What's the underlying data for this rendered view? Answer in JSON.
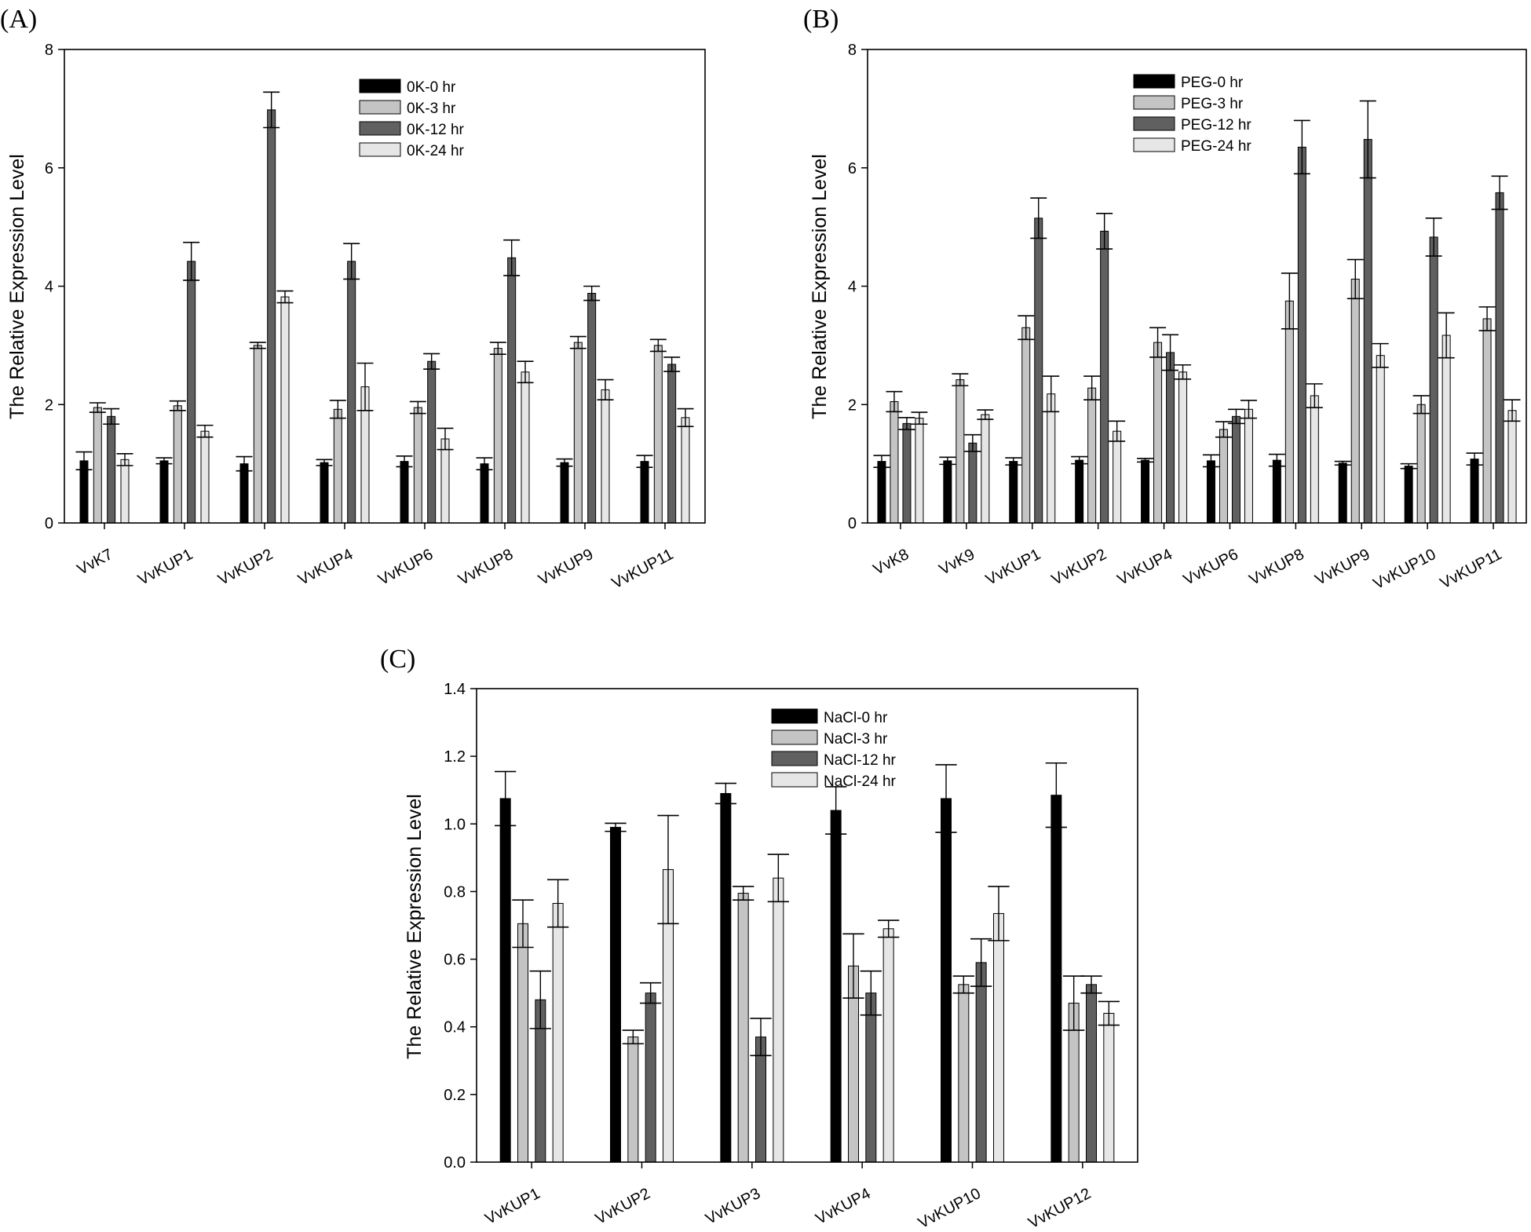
{
  "chart_data": [
    {
      "type": "bar",
      "panel_label": "(A)",
      "title": "",
      "xlabel": "",
      "ylabel": "The Relative Expression Level",
      "ylim": [
        0,
        8
      ],
      "yticks": [
        "0",
        "2",
        "4",
        "6",
        "8"
      ],
      "legend_position": "top-center",
      "categories": [
        "VvK7",
        "VvKUP1",
        "VvKUP2",
        "VvKUP4",
        "VvKUP6",
        "VvKUP8",
        "VvKUP9",
        "VvKUP11"
      ],
      "series": [
        {
          "name": "0K-0 hr",
          "color": "#000000",
          "values": [
            1.05,
            1.05,
            1.0,
            1.02,
            1.04,
            1.0,
            1.02,
            1.04
          ],
          "errors": [
            0.15,
            0.05,
            0.12,
            0.05,
            0.09,
            0.1,
            0.06,
            0.1
          ]
        },
        {
          "name": "0K-3 hr",
          "color": "#c4c4c4",
          "values": [
            1.95,
            1.98,
            3.0,
            1.92,
            1.95,
            2.95,
            3.05,
            3.0
          ],
          "errors": [
            0.08,
            0.08,
            0.05,
            0.15,
            0.1,
            0.1,
            0.1,
            0.1
          ]
        },
        {
          "name": "0K-12 hr",
          "color": "#606060",
          "values": [
            1.8,
            4.42,
            6.98,
            4.42,
            2.73,
            4.48,
            3.88,
            2.68
          ],
          "errors": [
            0.13,
            0.32,
            0.3,
            0.3,
            0.13,
            0.3,
            0.12,
            0.12
          ]
        },
        {
          "name": "0K-24 hr",
          "color": "#e6e6e6",
          "values": [
            1.07,
            1.55,
            3.82,
            2.3,
            1.42,
            2.55,
            2.25,
            1.78
          ],
          "errors": [
            0.1,
            0.1,
            0.1,
            0.4,
            0.18,
            0.18,
            0.17,
            0.15
          ]
        }
      ]
    },
    {
      "type": "bar",
      "panel_label": "(B)",
      "title": "",
      "xlabel": "",
      "ylabel": "The Relative Expression Level",
      "ylim": [
        0,
        8
      ],
      "yticks": [
        "0",
        "2",
        "4",
        "6",
        "8"
      ],
      "legend_position": "top-center",
      "categories": [
        "VvK8",
        "VvK9",
        "VvKUP1",
        "VvKUP2",
        "VvKUP4",
        "VvKUP6",
        "VvKUP8",
        "VvKUP9",
        "VvKUP10",
        "VvKUP11"
      ],
      "series": [
        {
          "name": "PEG-0 hr",
          "color": "#000000",
          "values": [
            1.04,
            1.05,
            1.04,
            1.06,
            1.06,
            1.05,
            1.06,
            1.01,
            0.96,
            1.08
          ],
          "errors": [
            0.1,
            0.06,
            0.06,
            0.06,
            0.03,
            0.1,
            0.1,
            0.03,
            0.04,
            0.1
          ]
        },
        {
          "name": "PEG-3 hr",
          "color": "#c4c4c4",
          "values": [
            2.05,
            2.42,
            3.3,
            2.28,
            3.05,
            1.58,
            3.75,
            4.12,
            2.0,
            3.45
          ],
          "errors": [
            0.17,
            0.1,
            0.2,
            0.2,
            0.25,
            0.13,
            0.47,
            0.33,
            0.15,
            0.2
          ]
        },
        {
          "name": "PEG-12 hr",
          "color": "#606060",
          "values": [
            1.68,
            1.35,
            5.15,
            4.93,
            2.88,
            1.8,
            6.35,
            6.48,
            4.83,
            5.58
          ],
          "errors": [
            0.1,
            0.14,
            0.34,
            0.3,
            0.3,
            0.12,
            0.45,
            0.65,
            0.32,
            0.28
          ]
        },
        {
          "name": "PEG-24 hr",
          "color": "#e6e6e6",
          "values": [
            1.77,
            1.83,
            2.18,
            1.55,
            2.55,
            1.92,
            2.15,
            2.83,
            3.17,
            1.9
          ],
          "errors": [
            0.1,
            0.08,
            0.3,
            0.17,
            0.12,
            0.15,
            0.2,
            0.2,
            0.38,
            0.18
          ]
        }
      ]
    },
    {
      "type": "bar",
      "panel_label": "(C)",
      "title": "",
      "xlabel": "",
      "ylabel": "The Relative Expression Level",
      "ylim": [
        0,
        1.4
      ],
      "yticks": [
        "0.0",
        "0.2",
        "0.4",
        "0.6",
        "0.8",
        "1.0",
        "1.2",
        "1.4"
      ],
      "legend_position": "top-center",
      "categories": [
        "VvKUP1",
        "VvKUP2",
        "VvKUP3",
        "VvKUP4",
        "VvKUP10",
        "VvKUP12"
      ],
      "series": [
        {
          "name": "NaCl-0 hr",
          "color": "#000000",
          "values": [
            1.075,
            0.99,
            1.09,
            1.04,
            1.075,
            1.085
          ],
          "errors": [
            0.08,
            0.012,
            0.03,
            0.07,
            0.1,
            0.095
          ]
        },
        {
          "name": "NaCl-3 hr",
          "color": "#c4c4c4",
          "values": [
            0.705,
            0.37,
            0.795,
            0.58,
            0.525,
            0.47
          ],
          "errors": [
            0.07,
            0.02,
            0.02,
            0.095,
            0.025,
            0.08
          ]
        },
        {
          "name": "NaCl-12 hr",
          "color": "#606060",
          "values": [
            0.48,
            0.5,
            0.37,
            0.5,
            0.59,
            0.525
          ],
          "errors": [
            0.085,
            0.03,
            0.055,
            0.065,
            0.07,
            0.025
          ]
        },
        {
          "name": "NaCl-24 hr",
          "color": "#e6e6e6",
          "values": [
            0.765,
            0.865,
            0.84,
            0.69,
            0.735,
            0.44
          ],
          "errors": [
            0.07,
            0.16,
            0.07,
            0.025,
            0.08,
            0.035
          ]
        }
      ]
    }
  ]
}
